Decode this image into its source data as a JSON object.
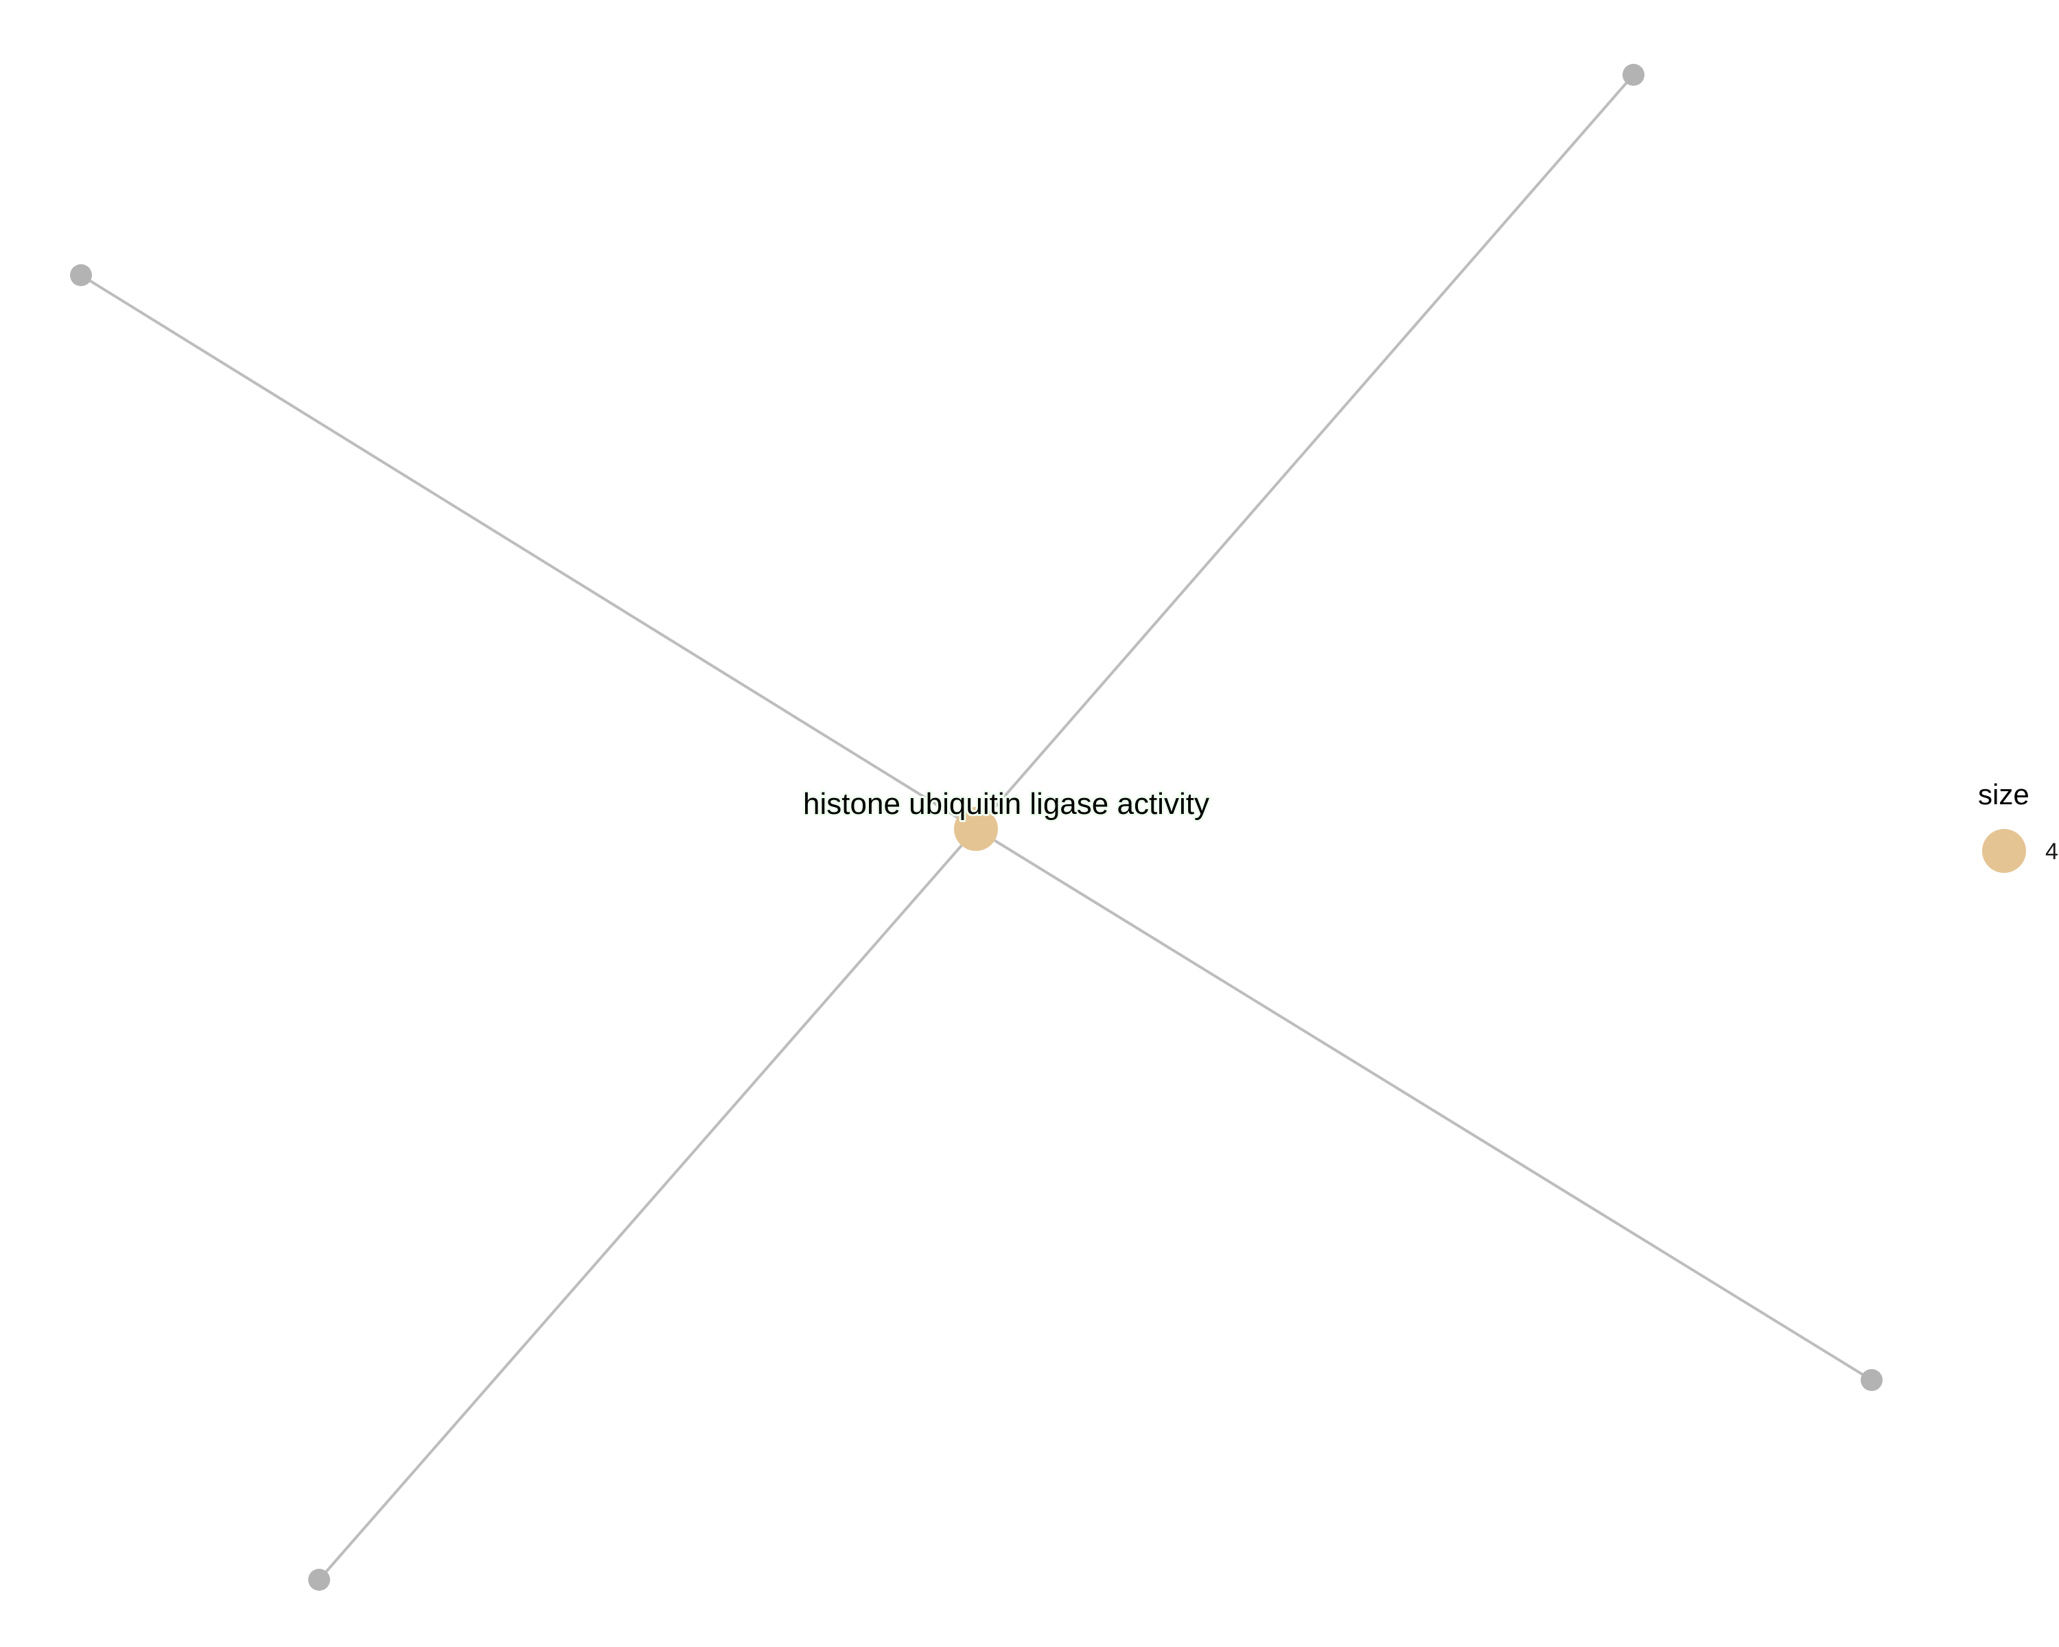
{
  "network": {
    "center_node": {
      "label": "histone ubiquitin ligase activity",
      "color": "#e5c494",
      "size": 4
    },
    "leaf_node_color": "#b3b3b3",
    "edge_color": "#bdbdbd",
    "leaf_count": 4
  },
  "legend": {
    "title": "size",
    "key_label": "4",
    "key_color": "#e5c494"
  }
}
